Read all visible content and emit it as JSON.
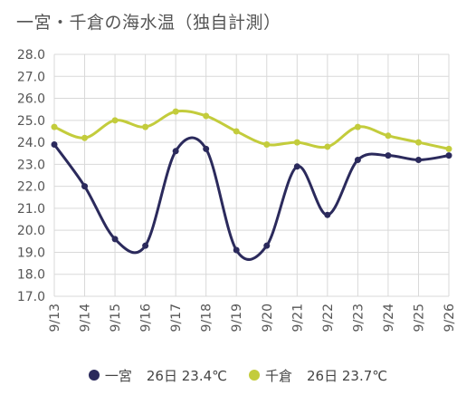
{
  "chart_data": {
    "type": "line",
    "title": "一宮・千倉の海水温（独自計測）",
    "categories": [
      "9/13",
      "9/14",
      "9/15",
      "9/16",
      "9/17",
      "9/18",
      "9/19",
      "9/20",
      "9/21",
      "9/22",
      "9/23",
      "9/24",
      "9/25",
      "9/26"
    ],
    "ylim": [
      17.0,
      28.0
    ],
    "yticks": [
      "17.0",
      "18.0",
      "19.0",
      "20.0",
      "21.0",
      "22.0",
      "23.0",
      "24.0",
      "25.0",
      "26.0",
      "27.0",
      "28.0"
    ],
    "grid": true,
    "legend_position": "bottom",
    "series": [
      {
        "name": "一宮",
        "legend_label": "26日 23.4℃",
        "color": "#2b2a5c",
        "values": [
          23.9,
          22.0,
          19.6,
          19.3,
          23.6,
          23.7,
          19.1,
          19.3,
          22.9,
          20.7,
          23.2,
          23.4,
          23.2,
          23.4
        ]
      },
      {
        "name": "千倉",
        "legend_label": "26日 23.7℃",
        "color": "#c3cc3c",
        "values": [
          24.7,
          24.2,
          25.0,
          24.7,
          25.4,
          25.2,
          24.5,
          23.9,
          24.0,
          23.8,
          24.7,
          24.3,
          24.0,
          23.7
        ]
      }
    ]
  }
}
